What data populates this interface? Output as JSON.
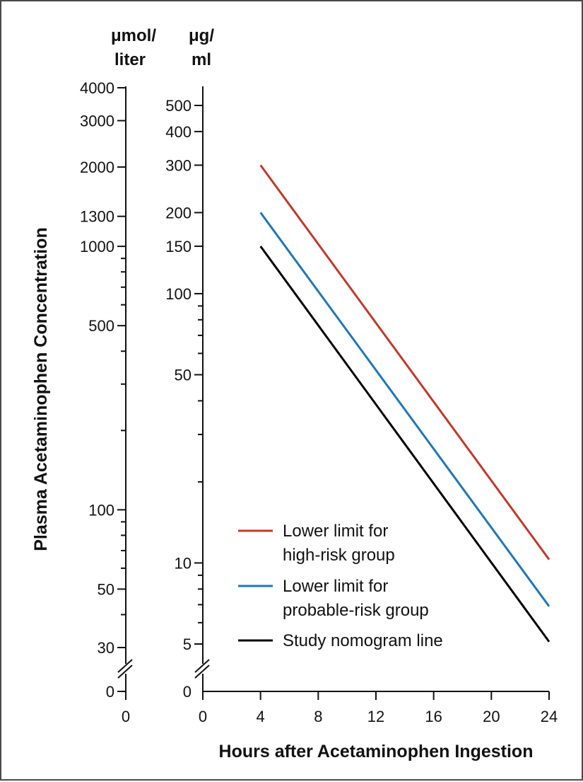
{
  "chart_data": {
    "type": "line",
    "title": "",
    "xlabel": "Hours after Acetaminophen Ingestion",
    "ylabel": "Plasma Acetaminophen Concentration",
    "x_ticks": [
      0,
      4,
      8,
      12,
      16,
      20,
      24
    ],
    "xlim": [
      0,
      24
    ],
    "y_scale": "log",
    "y_axis_break": true,
    "y_axes": [
      {
        "unit_line1": "μmol/",
        "unit_line2": "liter",
        "ticks": [
          4000,
          3000,
          2000,
          1300,
          1000,
          500,
          100,
          50,
          30
        ],
        "tick_labels": [
          "4000",
          "3000",
          "2000",
          "1300",
          "1000",
          "500",
          "100",
          "50",
          "30"
        ],
        "break_label": "0",
        "x_label": "0"
      },
      {
        "unit_line1": "μg/",
        "unit_line2": "ml",
        "ticks": [
          500,
          400,
          300,
          200,
          150,
          100,
          50,
          10,
          5
        ],
        "tick_labels": [
          "500",
          "400",
          "300",
          "200",
          "150",
          "100",
          "50",
          "10",
          "5"
        ],
        "break_label": "0"
      }
    ],
    "series": [
      {
        "name": "Lower limit for high-risk group",
        "legend_line1": "Lower limit for",
        "legend_line2": "high-risk group",
        "color": "#c0392b",
        "x": [
          4,
          24
        ],
        "y": [
          300,
          10.3
        ]
      },
      {
        "name": "Lower limit for probable-risk group",
        "legend_line1": "Lower limit for",
        "legend_line2": "probable-risk group",
        "color": "#1f77b4",
        "x": [
          4,
          24
        ],
        "y": [
          200,
          6.9
        ]
      },
      {
        "name": "Study nomogram line",
        "legend_line1": "Study nomogram line",
        "legend_line2": "",
        "color": "#000000",
        "x": [
          4,
          24
        ],
        "y": [
          150,
          5.1
        ]
      }
    ],
    "legend_position": "bottom-right",
    "grid": false
  }
}
